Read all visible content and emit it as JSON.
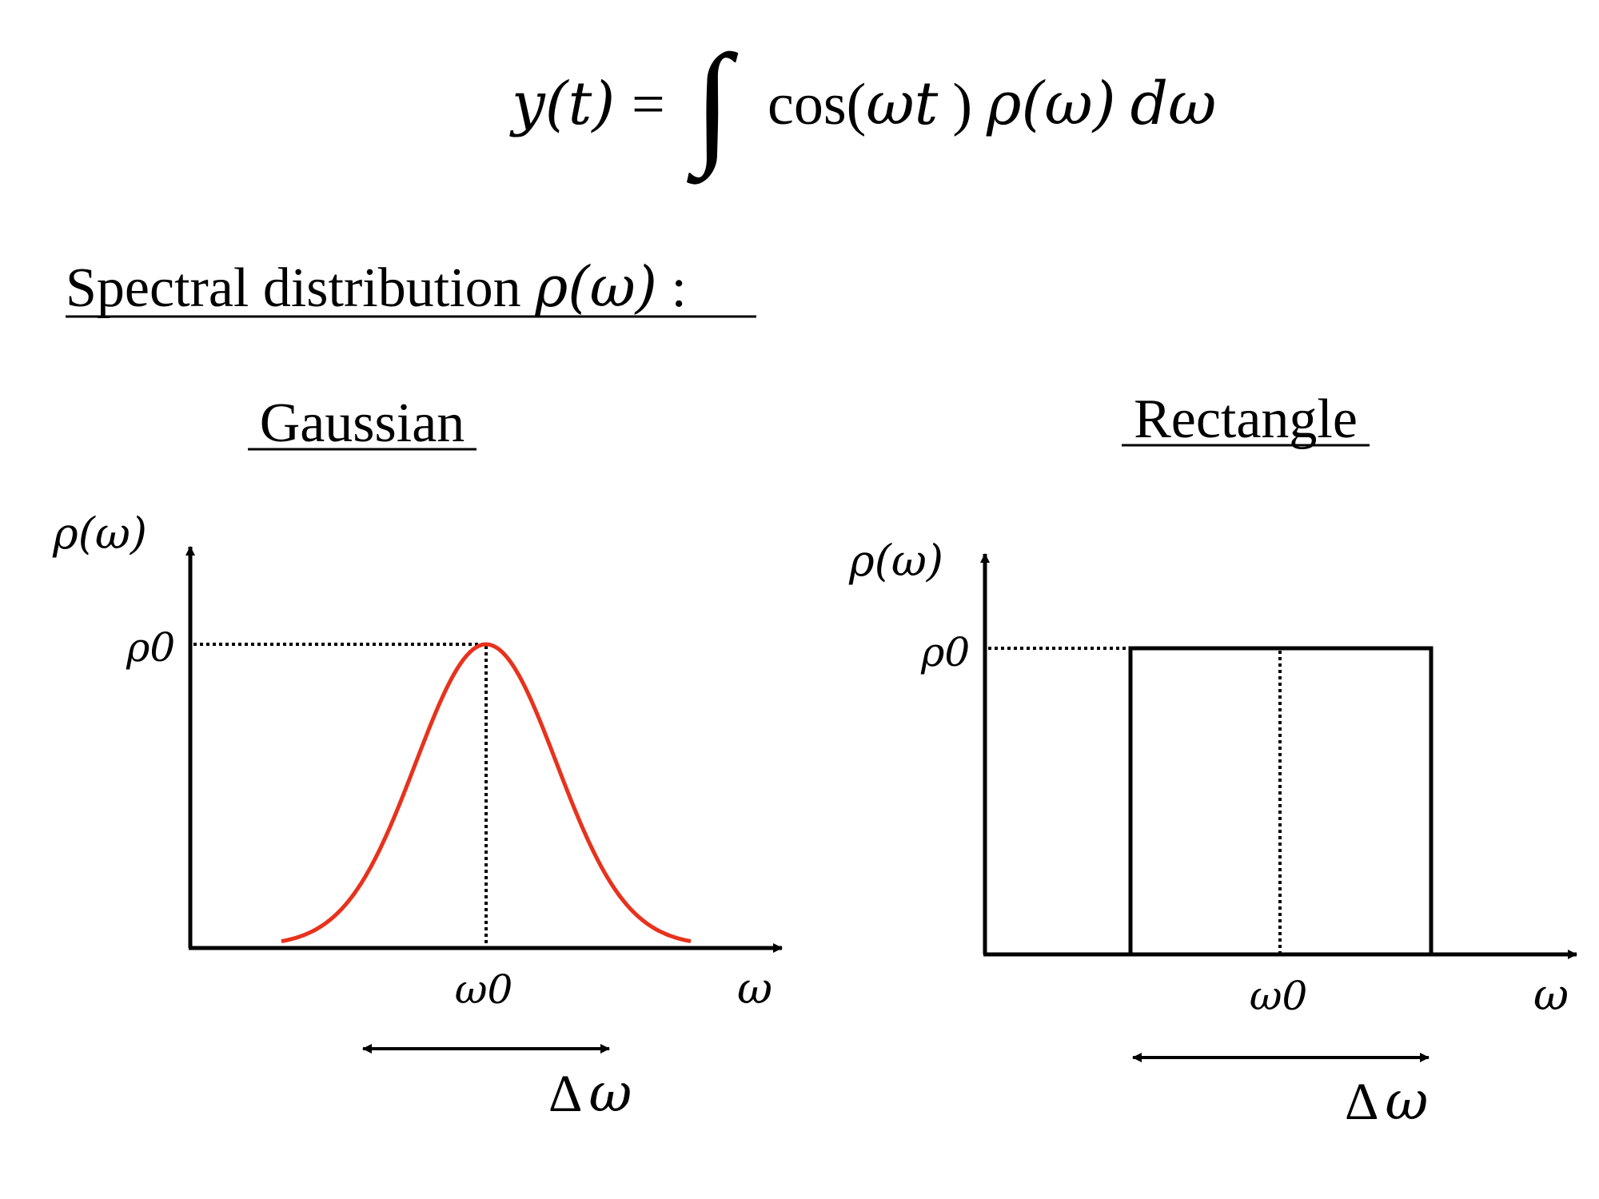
{
  "equation": {
    "lhs": "y(t)",
    "equals": "=",
    "integral": "∫",
    "cos_part": "cos(",
    "omega_t": "ωt",
    "close_paren": ")",
    "rho_part": "ρ(ω)",
    "d": "d",
    "omega": "ω"
  },
  "section_heading": {
    "text": "Spectral distribution ",
    "math": "ρ(ω)",
    "colon": " :"
  },
  "gaussian": {
    "title": "Gaussian",
    "y_axis_label": "ρ(ω)",
    "peak_label": "ρ0",
    "x_tick_label": "ω0",
    "x_axis_label": "ω",
    "width_label": "Δ",
    "width_label_omega": "ω"
  },
  "rectangle": {
    "title": "Rectangle",
    "y_axis_label": "ρ(ω)",
    "peak_label": "ρ0",
    "x_tick_label": "ω0",
    "x_axis_label": "ω",
    "width_label": "Δ",
    "width_label_omega": "ω"
  },
  "colors": {
    "curve": "#e8321c",
    "ink": "#000000"
  }
}
